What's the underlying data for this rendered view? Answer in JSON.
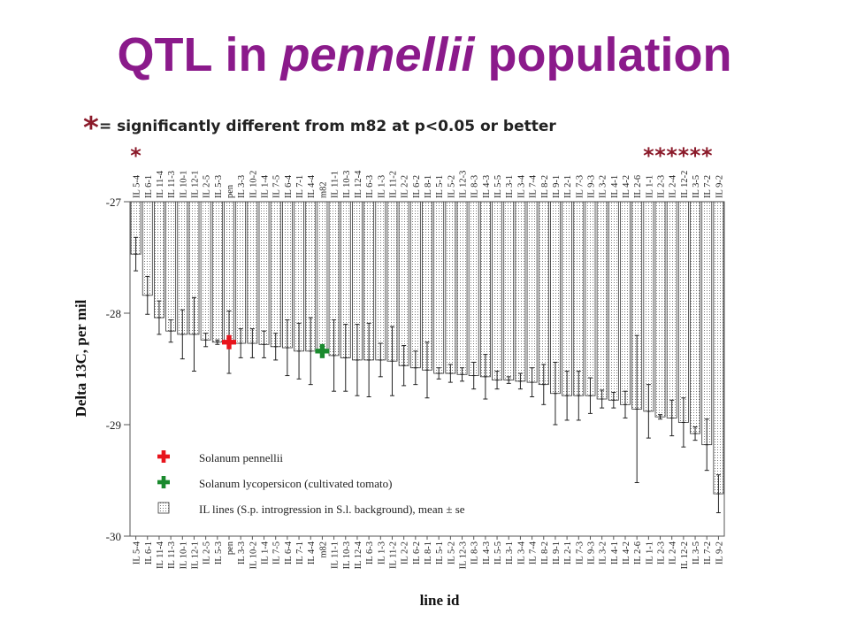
{
  "slide": {
    "title_before": "QTL in ",
    "title_italic": "pennellii",
    "title_after": " population"
  },
  "chart_data": {
    "type": "bar",
    "note_symbol": "*",
    "note_text": "= significantly different from m82 at p<0.05 or better",
    "ylabel": "Delta 13C, per mil",
    "xlabel": "line id",
    "ylim": [
      -30,
      -27
    ],
    "yticks": [
      -27,
      -28,
      -29,
      -30
    ],
    "bar_base": -27,
    "grid": false,
    "legend": {
      "position": "bottom-left",
      "entries": [
        {
          "label": "Solanum pennellii",
          "marker": "plus",
          "color": "#e8141c"
        },
        {
          "label": "Solanum lycopersicon (cultivated tomato)",
          "marker": "plus",
          "color": "#1a8a2e"
        },
        {
          "label": "IL lines (S.p. introgression in S.l. background), mean ± se",
          "marker": "dotted-box",
          "color": "#999999"
        }
      ]
    },
    "categories": [
      "IL 5-4",
      "IL 6-1",
      "IL 11-4",
      "IL 11-3",
      "IL 10-1",
      "IL 12-1",
      "IL 2-5",
      "IL 5-3",
      "pen",
      "IL 3-3",
      "IL 10-2",
      "IL 1-4",
      "IL 7-5",
      "IL 6-4",
      "IL 7-1",
      "IL 4-4",
      "m82",
      "IL 11-1",
      "IL 10-3",
      "IL 12-4",
      "IL 6-3",
      "IL 1-3",
      "IL 11-2",
      "IL 2-2",
      "IL 6-2",
      "IL 8-1",
      "IL 5-1",
      "IL 5-2",
      "IL 12-3",
      "IL 8-3",
      "IL 4-3",
      "IL 5-5",
      "IL 3-1",
      "IL 3-4",
      "IL 7-4",
      "IL 8-2",
      "IL 9-1",
      "IL 2-1",
      "IL 7-3",
      "IL 9-3",
      "IL 3-2",
      "IL 4-1",
      "IL 4-2",
      "IL 2-6",
      "IL 1-1",
      "IL 2-3",
      "IL 2-4",
      "IL 12-2",
      "IL 3-5",
      "IL 7-2",
      "IL 9-2"
    ],
    "series": [
      {
        "values": [
          -27.47,
          -27.84,
          -28.04,
          -28.16,
          -28.19,
          -28.19,
          -28.24,
          -28.26,
          -28.26,
          -28.27,
          -28.27,
          -28.28,
          -28.3,
          -28.31,
          -28.34,
          -28.34,
          -28.34,
          -28.38,
          -28.4,
          -28.42,
          -28.42,
          -28.42,
          -28.43,
          -28.47,
          -28.49,
          -28.51,
          -28.54,
          -28.54,
          -28.55,
          -28.56,
          -28.57,
          -28.6,
          -28.6,
          -28.61,
          -28.62,
          -28.64,
          -28.72,
          -28.74,
          -28.74,
          -28.74,
          -28.77,
          -28.78,
          -28.82,
          -28.86,
          -28.88,
          -28.93,
          -28.94,
          -28.98,
          -29.08,
          -29.18,
          -29.62
        ],
        "se": [
          0.15,
          0.17,
          0.15,
          0.1,
          0.22,
          0.33,
          0.06,
          0.02,
          0.28,
          0.13,
          0.13,
          0.12,
          0.12,
          0.25,
          0.25,
          0.3,
          0.02,
          0.32,
          0.3,
          0.32,
          0.33,
          0.15,
          0.31,
          0.18,
          0.15,
          0.25,
          0.05,
          0.08,
          0.06,
          0.12,
          0.2,
          0.08,
          0.03,
          0.07,
          0.13,
          0.18,
          0.28,
          0.22,
          0.22,
          0.16,
          0.08,
          0.07,
          0.12,
          0.66,
          0.24,
          0.02,
          0.16,
          0.22,
          0.06,
          0.23,
          0.17
        ]
      }
    ],
    "highlights": [
      {
        "category": "pen",
        "value": -28.26,
        "color": "#e8141c"
      },
      {
        "category": "m82",
        "value": -28.34,
        "color": "#1a8a2e"
      }
    ],
    "significant": [
      "IL 5-4",
      "IL 1-1",
      "IL 2-3",
      "IL 2-4",
      "IL 12-2",
      "IL 3-5",
      "IL 7-2"
    ]
  }
}
